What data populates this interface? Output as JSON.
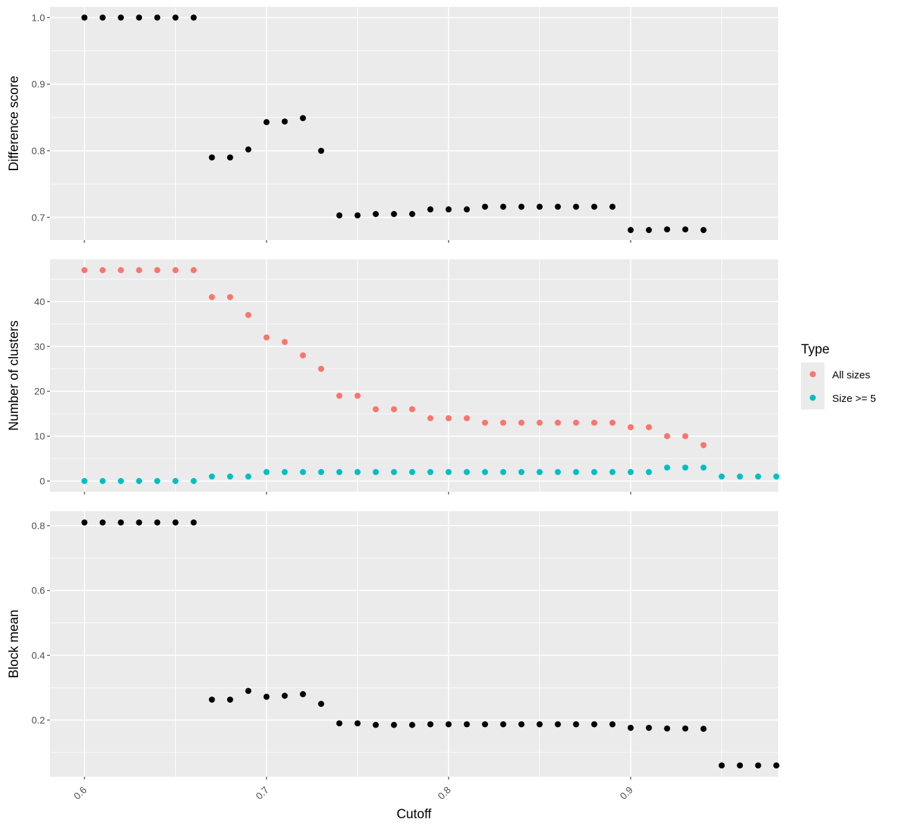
{
  "chart_data": {
    "type": "scatter",
    "xlabel": "Cutoff",
    "x_ticks": [
      0.6,
      0.7,
      0.8,
      0.9
    ],
    "xlim": [
      0.581,
      0.981
    ],
    "x": [
      0.6,
      0.61,
      0.62,
      0.63,
      0.64,
      0.65,
      0.66,
      0.67,
      0.68,
      0.69,
      0.7,
      0.71,
      0.72,
      0.73,
      0.74,
      0.75,
      0.76,
      0.77,
      0.78,
      0.79,
      0.8,
      0.81,
      0.82,
      0.83,
      0.84,
      0.85,
      0.86,
      0.87,
      0.88,
      0.89,
      0.9,
      0.91,
      0.92,
      0.93,
      0.94,
      0.95,
      0.96,
      0.97,
      0.98
    ],
    "grid": true,
    "panels": [
      {
        "ylabel": "Difference score",
        "ylim": [
          0.666,
          1.016
        ],
        "y_ticks": [
          0.7,
          0.8,
          0.9,
          1.0
        ],
        "y_tick_labels": [
          "0.7",
          "0.8",
          "0.9",
          "1.0"
        ],
        "series": [
          {
            "color": "#000000",
            "values": [
              1.0,
              1.0,
              1.0,
              1.0,
              1.0,
              1.0,
              1.0,
              0.79,
              0.79,
              0.802,
              0.843,
              0.844,
              0.849,
              0.8,
              0.703,
              0.703,
              0.705,
              0.705,
              0.705,
              0.712,
              0.712,
              0.712,
              0.716,
              0.716,
              0.716,
              0.716,
              0.716,
              0.716,
              0.716,
              0.716,
              0.681,
              0.681,
              0.682,
              0.682,
              0.681,
              null,
              null,
              null,
              null
            ]
          }
        ]
      },
      {
        "ylabel": "Number of clusters",
        "ylim": [
          -2.4,
          49.4
        ],
        "y_ticks": [
          0,
          10,
          20,
          30,
          40
        ],
        "y_tick_labels": [
          "0",
          "10",
          "20",
          "30",
          "40"
        ],
        "series": [
          {
            "name": "All sizes",
            "color": "#F8766D",
            "values": [
              47,
              47,
              47,
              47,
              47,
              47,
              47,
              41,
              41,
              37,
              32,
              31,
              28,
              25,
              19,
              19,
              16,
              16,
              16,
              14,
              14,
              14,
              13,
              13,
              13,
              13,
              13,
              13,
              13,
              13,
              12,
              12,
              10,
              10,
              8,
              null,
              null,
              null,
              null
            ]
          },
          {
            "name": "Size >= 5",
            "color": "#00BFC4",
            "values": [
              0,
              0,
              0,
              0,
              0,
              0,
              0,
              1,
              1,
              1,
              2,
              2,
              2,
              2,
              2,
              2,
              2,
              2,
              2,
              2,
              2,
              2,
              2,
              2,
              2,
              2,
              2,
              2,
              2,
              2,
              2,
              2,
              3,
              3,
              3,
              1,
              1,
              1,
              1
            ]
          }
        ]
      },
      {
        "ylabel": "Block mean",
        "ylim": [
          0.025,
          0.845
        ],
        "y_ticks": [
          0.2,
          0.4,
          0.6,
          0.8
        ],
        "y_tick_labels": [
          "0.2",
          "0.4",
          "0.6",
          "0.8"
        ],
        "series": [
          {
            "color": "#000000",
            "values": [
              0.81,
              0.81,
              0.81,
              0.81,
              0.81,
              0.81,
              0.81,
              0.263,
              0.263,
              0.29,
              0.272,
              0.275,
              0.28,
              0.25,
              0.19,
              0.19,
              0.185,
              0.185,
              0.185,
              0.187,
              0.187,
              0.187,
              0.187,
              0.187,
              0.187,
              0.187,
              0.187,
              0.187,
              0.187,
              0.187,
              0.176,
              0.176,
              0.174,
              0.174,
              0.173,
              0.06,
              0.06,
              0.06,
              0.06
            ]
          }
        ]
      }
    ],
    "legend": {
      "title": "Type",
      "position": "right",
      "entries": [
        {
          "label": "All sizes",
          "color": "#F8766D"
        },
        {
          "label": "Size >= 5",
          "color": "#00BFC4"
        }
      ]
    }
  }
}
